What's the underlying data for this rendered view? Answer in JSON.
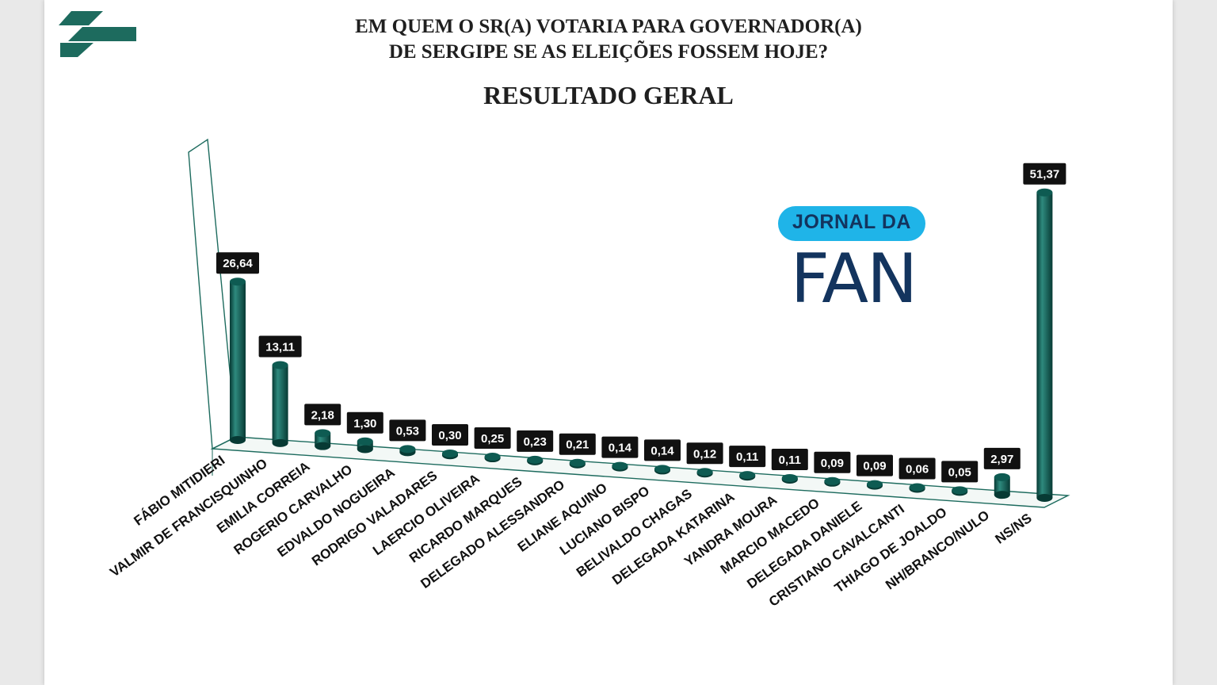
{
  "title_line1": "EM QUEM O SR(A) VOTARIA PARA GOVERNADOR(A)",
  "title_line2": "DE SERGIPE SE AS ELEIÇÕES FOSSEM HOJE?",
  "subtitle": "RESULTADO GERAL",
  "watermark": {
    "top": "JORNAL DA",
    "main": "FAN"
  },
  "colors": {
    "bar": "#0e5b52",
    "bar_light": "#2e8a7e",
    "bar_dark": "#073a34",
    "label_bg": "#111111",
    "label_text": "#ffffff",
    "logo": "#1d6b5e",
    "watermark_pill": "#1fb4e8",
    "watermark_text": "#13345e"
  },
  "chart_data": {
    "type": "bar",
    "title": "RESULTADO GERAL",
    "categories": [
      "FÁBIO MITIDIERI",
      "VALMIR DE FRANCISQUINHO",
      "EMILIA CORREIA",
      "ROGERIO CARVALHO",
      "EDVALDO NOGUEIRA",
      "RODRIGO VALADARES",
      "LAERCIO OLIVEIRA",
      "RICARDO MARQUES",
      "DELEGADO ALESSANDRO",
      "ELIANE AQUINO",
      "LUCIANO BISPO",
      "BELIVALDO CHAGAS",
      "DELEGADA KATARINA",
      "YANDRA MOURA",
      "MARCIO MACEDO",
      "DELEGADA DANIELE",
      "CRISTIANO CAVALCANTI",
      "THIAGO DE JOALDO",
      "NH/BRANCO/NULO",
      "NS/NS"
    ],
    "values": [
      26.64,
      13.11,
      2.18,
      1.3,
      0.53,
      0.3,
      0.25,
      0.23,
      0.21,
      0.14,
      0.14,
      0.12,
      0.11,
      0.11,
      0.09,
      0.09,
      0.06,
      0.05,
      2.97,
      51.37
    ],
    "value_labels": [
      "26,64",
      "13,11",
      "2,18",
      "1,30",
      "0,53",
      "0,30",
      "0,25",
      "0,23",
      "0,21",
      "0,14",
      "0,14",
      "0,12",
      "0,11",
      "0,11",
      "0,09",
      "0,09",
      "0,06",
      "0,05",
      "2,97",
      "51,37"
    ],
    "legend": "none",
    "grid": false
  }
}
